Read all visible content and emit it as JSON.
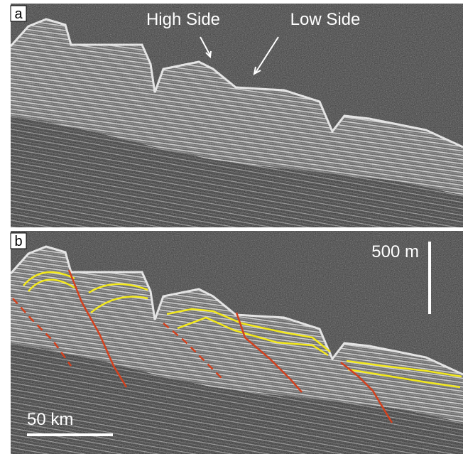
{
  "panels": [
    {
      "label": "a",
      "annotations": [
        "High Side",
        "Low Side"
      ]
    },
    {
      "label": "b",
      "vertical_scale": "500 m",
      "horizontal_scale": "50 km"
    }
  ]
}
